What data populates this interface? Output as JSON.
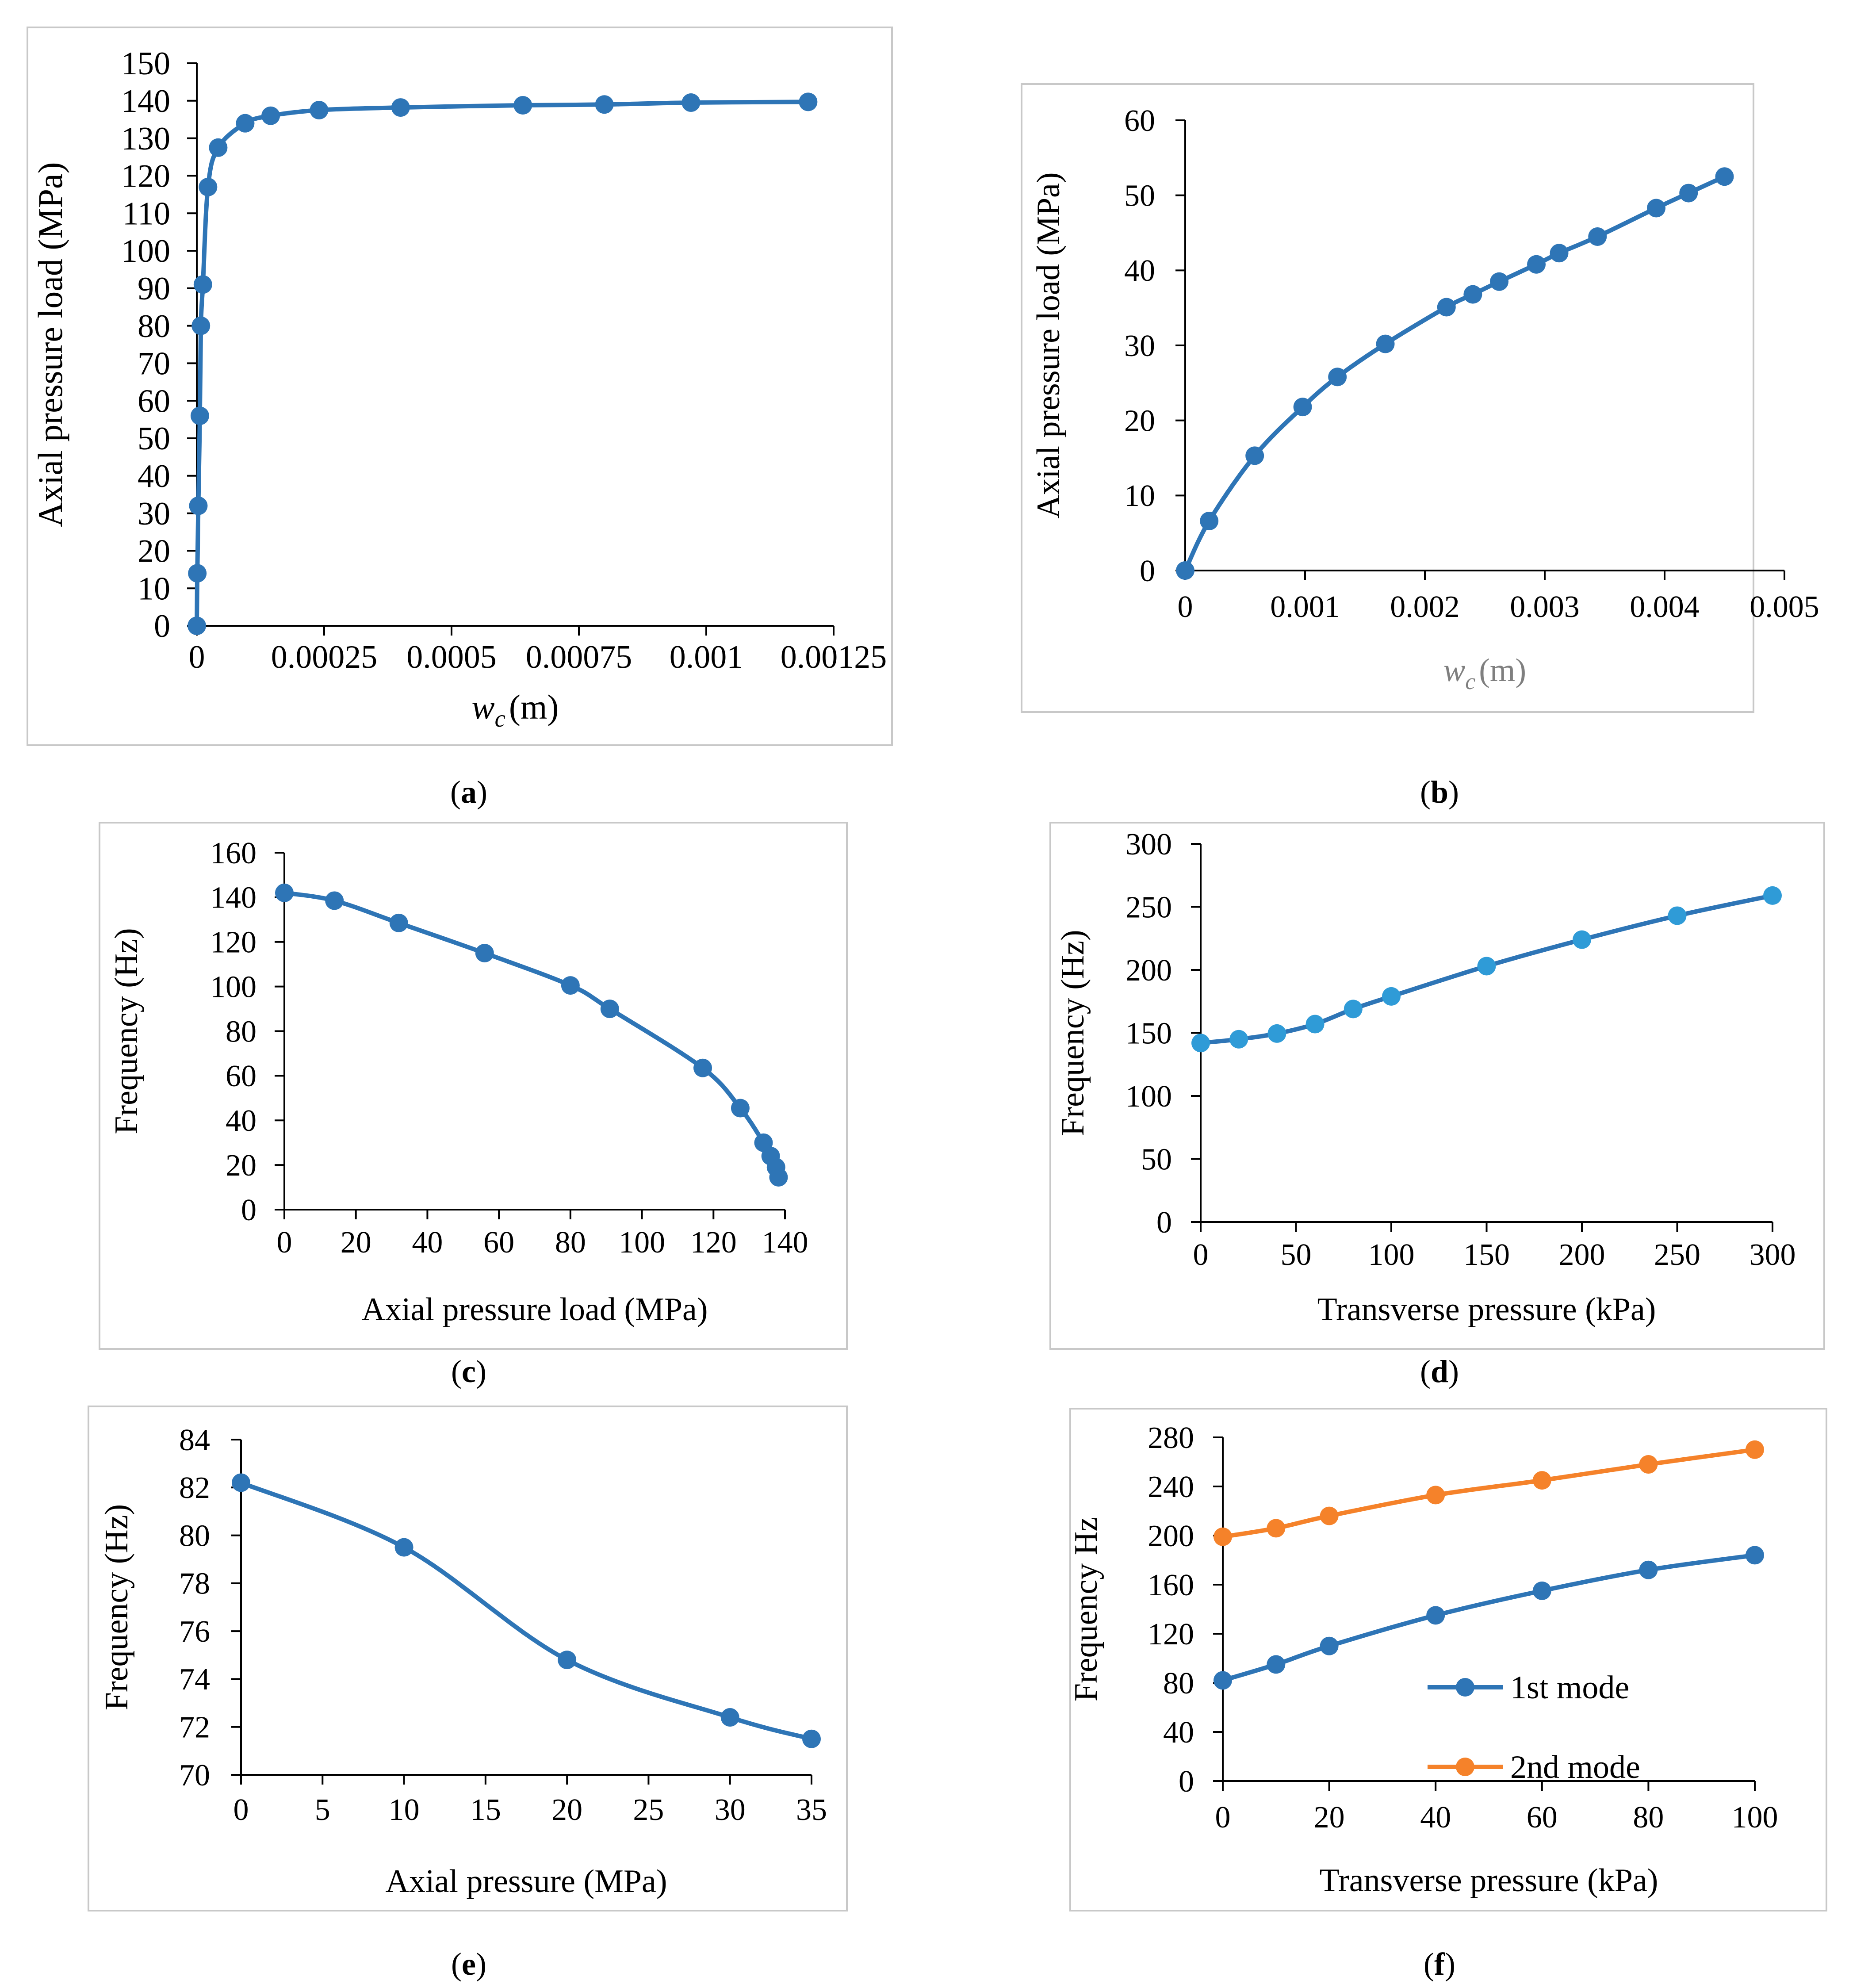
{
  "figure": {
    "panel_labels": [
      "(a)",
      "(b)",
      "(c)",
      "(d)",
      "(e)",
      "(f)"
    ],
    "colors": {
      "series_blue": "#2E75B6",
      "marker_blue_light": "#2F9BD7",
      "series_orange": "#F5822A",
      "axis": "#000000",
      "frame": "#C8C8C8",
      "xlabel_gray": "#7F7F7F"
    }
  },
  "chart_data": [
    {
      "id": "a",
      "type": "line",
      "title": "",
      "ylabel": "Axial pressure load (MPa)",
      "xlabel_symbol": "w",
      "xlabel_sub": "c",
      "xlabel_unit": "(m)",
      "xlim": [
        0,
        0.00125
      ],
      "ylim": [
        0,
        150
      ],
      "xticks": [
        0,
        0.00025,
        0.0005,
        0.00075,
        0.001,
        0.00125
      ],
      "xtick_labels": [
        "0",
        "0.00025",
        "0.0005",
        "0.00075",
        "0.001",
        "0.00125"
      ],
      "yticks": [
        0,
        10,
        20,
        30,
        40,
        50,
        60,
        70,
        80,
        90,
        100,
        110,
        120,
        130,
        140,
        150
      ],
      "ytick_labels": [
        "0",
        "10",
        "20",
        "30",
        "40",
        "50",
        "60",
        "70",
        "80",
        "90",
        "100",
        "110",
        "120",
        "130",
        "140",
        "150"
      ],
      "series": [
        {
          "name": "",
          "color": "#2E75B6",
          "x": [
            0,
            1e-06,
            3e-06,
            6e-06,
            8e-06,
            1.2e-05,
            2.2e-05,
            4.2e-05,
            9.5e-05,
            0.000145,
            0.00024,
            0.0004,
            0.00064,
            0.0008,
            0.00097,
            0.0012
          ],
          "y": [
            0,
            14,
            32,
            56,
            80,
            91,
            117,
            127.5,
            134,
            136,
            137.5,
            138.2,
            138.8,
            139,
            139.5,
            139.7
          ]
        }
      ]
    },
    {
      "id": "b",
      "type": "line",
      "title": "",
      "ylabel": "Axial pressure load (MPa)",
      "xlabel_symbol": "w",
      "xlabel_sub": "c",
      "xlabel_unit": "(m)",
      "xlim": [
        0,
        0.005
      ],
      "ylim": [
        0,
        60
      ],
      "xticks": [
        0,
        0.001,
        0.002,
        0.003,
        0.004,
        0.005
      ],
      "xtick_labels": [
        "0",
        "0.001",
        "0.002",
        "0.003",
        "0.004",
        "0.005"
      ],
      "yticks": [
        0,
        10,
        20,
        30,
        40,
        50,
        60
      ],
      "ytick_labels": [
        "0",
        "10",
        "20",
        "30",
        "40",
        "50",
        "60"
      ],
      "series": [
        {
          "name": "",
          "color": "#2E75B6",
          "x": [
            0,
            0.0002,
            0.00058,
            0.00098,
            0.00127,
            0.00167,
            0.00218,
            0.0024,
            0.00262,
            0.00293,
            0.00312,
            0.00344,
            0.00393,
            0.0042,
            0.0045
          ],
          "y": [
            0,
            6.6,
            15.3,
            21.8,
            25.8,
            30.2,
            35.1,
            36.8,
            38.5,
            40.8,
            42.3,
            44.5,
            48.3,
            50.3,
            52.5
          ]
        }
      ]
    },
    {
      "id": "c",
      "type": "line",
      "title": "",
      "ylabel": "Frequency (Hz)",
      "xlabel": "Axial pressure load (MPa)",
      "xlim": [
        0,
        140
      ],
      "ylim": [
        0,
        160
      ],
      "xticks": [
        0,
        20,
        40,
        60,
        80,
        100,
        120,
        140
      ],
      "xtick_labels": [
        "0",
        "20",
        "40",
        "60",
        "80",
        "100",
        "120",
        "140"
      ],
      "yticks": [
        0,
        20,
        40,
        60,
        80,
        100,
        120,
        140,
        160
      ],
      "ytick_labels": [
        "0",
        "20",
        "40",
        "60",
        "80",
        "100",
        "120",
        "140",
        "160"
      ],
      "series": [
        {
          "name": "",
          "color": "#2E75B6",
          "x": [
            0,
            14,
            32,
            56,
            80,
            91,
            117,
            127.5,
            134,
            136,
            137.5,
            138.2
          ],
          "y": [
            142,
            138.5,
            128.5,
            115,
            100.5,
            90,
            63.5,
            45.5,
            30,
            24,
            19,
            14.5
          ]
        }
      ]
    },
    {
      "id": "d",
      "type": "line",
      "title": "",
      "ylabel": "Frequency (Hz)",
      "xlabel": "Transverse pressure (kPa)",
      "xlim": [
        0,
        300
      ],
      "ylim": [
        0,
        300
      ],
      "xticks": [
        0,
        50,
        100,
        150,
        200,
        250,
        300
      ],
      "xtick_labels": [
        "0",
        "50",
        "100",
        "150",
        "200",
        "250",
        "300"
      ],
      "yticks": [
        0,
        50,
        100,
        150,
        200,
        250,
        300
      ],
      "ytick_labels": [
        "0",
        "50",
        "100",
        "150",
        "200",
        "250",
        "300"
      ],
      "series": [
        {
          "name": "",
          "color": "#2E75B6",
          "x": [
            0,
            20,
            40,
            60,
            80,
            100,
            150,
            200,
            250,
            300
          ],
          "y": [
            142,
            145,
            149.5,
            157,
            169,
            179,
            203,
            224,
            243,
            259
          ]
        }
      ]
    },
    {
      "id": "e",
      "type": "line",
      "title": "",
      "ylabel": "Frequency (Hz)",
      "xlabel": "Axial pressure (MPa)",
      "xlim": [
        0,
        35
      ],
      "ylim": [
        70,
        84
      ],
      "xticks": [
        0,
        5,
        10,
        15,
        20,
        25,
        30,
        35
      ],
      "xtick_labels": [
        "0",
        "5",
        "10",
        "15",
        "20",
        "25",
        "30",
        "35"
      ],
      "yticks": [
        70,
        72,
        74,
        76,
        78,
        80,
        82,
        84
      ],
      "ytick_labels": [
        "70",
        "72",
        "74",
        "76",
        "78",
        "80",
        "82",
        "84"
      ],
      "series": [
        {
          "name": "",
          "color": "#2E75B6",
          "x": [
            0,
            10,
            20,
            30,
            35
          ],
          "y": [
            82.2,
            79.5,
            74.8,
            72.4,
            71.5
          ]
        }
      ]
    },
    {
      "id": "f",
      "type": "line",
      "title": "",
      "ylabel": "Frequency Hz",
      "xlabel": "Transverse pressure (kPa)",
      "xlim": [
        0,
        100
      ],
      "ylim": [
        0,
        280
      ],
      "xticks": [
        0,
        20,
        40,
        60,
        80,
        100
      ],
      "xtick_labels": [
        "0",
        "20",
        "40",
        "60",
        "80",
        "100"
      ],
      "yticks": [
        0,
        40,
        80,
        120,
        160,
        200,
        240,
        280
      ],
      "ytick_labels": [
        "0",
        "40",
        "80",
        "120",
        "160",
        "200",
        "240",
        "280"
      ],
      "legend": "center-right",
      "series": [
        {
          "name": "1st mode",
          "color": "#2E75B6",
          "x": [
            0,
            10,
            20,
            40,
            60,
            80,
            100
          ],
          "y": [
            82,
            95,
            110,
            135,
            155,
            172,
            184
          ]
        },
        {
          "name": "2nd mode",
          "color": "#F5822A",
          "x": [
            0,
            10,
            20,
            40,
            60,
            80,
            100
          ],
          "y": [
            199,
            206,
            216,
            233,
            245,
            258,
            270
          ]
        }
      ]
    }
  ]
}
